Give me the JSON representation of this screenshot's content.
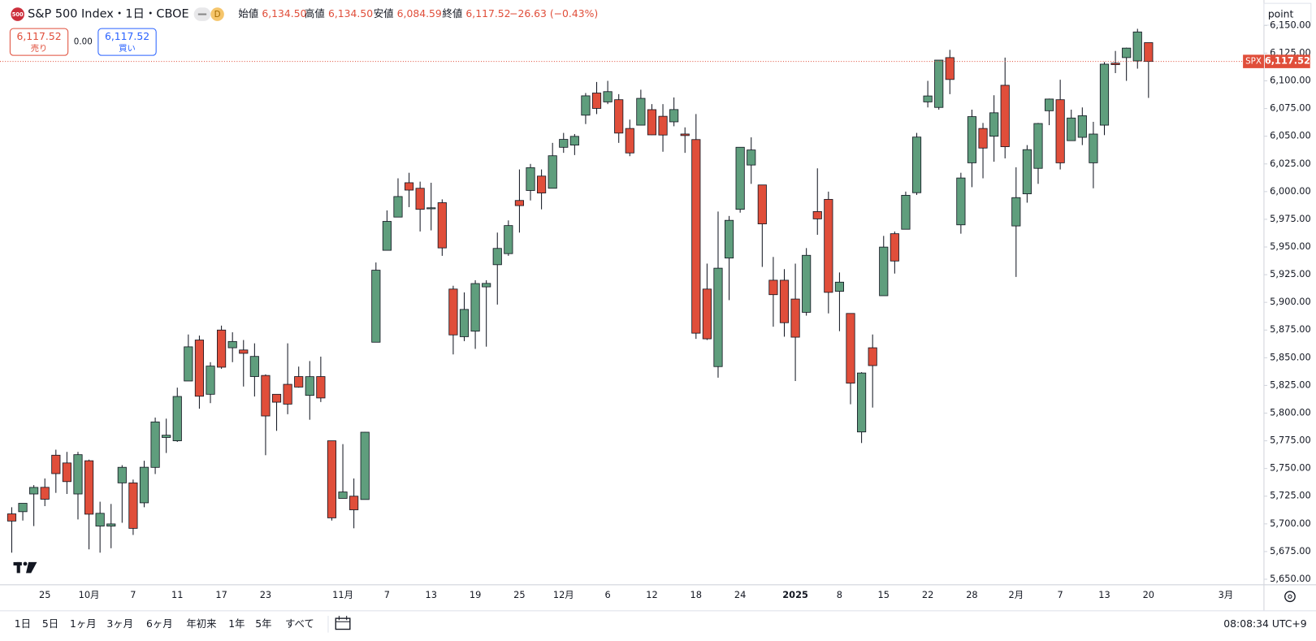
{
  "header": {
    "badge": "500",
    "title": "S&P 500 Index・1日・CBOE",
    "interval_badge": "D",
    "ohlc": [
      {
        "label": "始値",
        "value": "6,134.50"
      },
      {
        "label": "高値",
        "value": "6,134.50"
      },
      {
        "label": "安値",
        "value": "6,084.59"
      },
      {
        "label": "終値",
        "value": "6,117.52"
      }
    ],
    "change": "−26.63 (−0.43%)"
  },
  "trade": {
    "sell_price": "6,117.52",
    "sell_label": "売り",
    "spread": "0.00",
    "buy_price": "6,117.52",
    "buy_label": "買い"
  },
  "toolbar": {
    "ranges": [
      "1日",
      "5日",
      "1ヶ月",
      "3ヶ月",
      "6ヶ月",
      "年初来",
      "1年",
      "5年",
      "すべて"
    ],
    "clock": "08:08:34 UTC+9"
  },
  "chart_data": {
    "type": "candlestick",
    "unit_button": "point",
    "price_tag": {
      "symbol": "SPX",
      "label": "6,117.52"
    },
    "up_color": "#5f9e7d",
    "down_color": "#e04e3a",
    "grid": false,
    "ylim": [
      5645,
      6173
    ],
    "yticks": [
      {
        "value": 5650,
        "label": "5,650.00"
      },
      {
        "value": 5675,
        "label": "5,675.00"
      },
      {
        "value": 5700,
        "label": "5,700.00"
      },
      {
        "value": 5725,
        "label": "5,725.00"
      },
      {
        "value": 5750,
        "label": "5,750.00"
      },
      {
        "value": 5775,
        "label": "5,775.00"
      },
      {
        "value": 5800,
        "label": "5,800.00"
      },
      {
        "value": 5825,
        "label": "5,825.00"
      },
      {
        "value": 5850,
        "label": "5,850.00"
      },
      {
        "value": 5875,
        "label": "5,875.00"
      },
      {
        "value": 5900,
        "label": "5,900.00"
      },
      {
        "value": 5925,
        "label": "5,925.00"
      },
      {
        "value": 5950,
        "label": "5,950.00"
      },
      {
        "value": 5975,
        "label": "5,975.00"
      },
      {
        "value": 6000,
        "label": "6,000.00"
      },
      {
        "value": 6025,
        "label": "6,025.00"
      },
      {
        "value": 6050,
        "label": "6,050.00"
      },
      {
        "value": 6075,
        "label": "6,075.00"
      },
      {
        "value": 6100,
        "label": "6,100.00"
      },
      {
        "value": 6125,
        "label": "6,125.00"
      },
      {
        "value": 6150,
        "label": "6,150.00"
      }
    ],
    "categories": [
      null,
      null,
      null,
      "25",
      null,
      null,
      null,
      "10月",
      null,
      null,
      null,
      "7",
      null,
      null,
      null,
      "11",
      null,
      null,
      null,
      "17",
      null,
      null,
      null,
      "23",
      null,
      null,
      null,
      null,
      null,
      null,
      "11月",
      null,
      null,
      null,
      "7",
      null,
      null,
      null,
      "13",
      null,
      null,
      null,
      "19",
      null,
      null,
      null,
      "25",
      null,
      null,
      null,
      "12月",
      null,
      null,
      null,
      "6",
      null,
      null,
      null,
      "12",
      null,
      null,
      null,
      "18",
      null,
      null,
      null,
      "24",
      null,
      null,
      null,
      null,
      "2025",
      null,
      null,
      null,
      "8",
      null,
      null,
      null,
      "15",
      null,
      null,
      null,
      "22",
      null,
      null,
      null,
      "28",
      null,
      null,
      null,
      "2月",
      null,
      null,
      null,
      "7",
      null,
      null,
      null,
      "13",
      null,
      null,
      null,
      "20",
      null,
      null,
      null,
      null,
      null,
      null,
      "3月"
    ],
    "open": [
      5709,
      5711,
      5727,
      5733,
      5762,
      5755,
      5727,
      5757,
      5698,
      5698,
      5737,
      5737,
      5719,
      5751,
      5778,
      5775,
      5829,
      5866,
      5817,
      5875,
      5859,
      5857,
      5833,
      5834,
      5817,
      5826,
      5833,
      5816,
      5833,
      5775,
      5723,
      5725,
      5722,
      5864,
      5947,
      5977,
      6008,
      6003,
      5985,
      5990,
      5912,
      5869,
      5874,
      5914,
      5934,
      5944,
      5992,
      6001,
      6014,
      6003,
      6040,
      6042,
      6069,
      6089,
      6081,
      6083,
      6057,
      6060,
      6074,
      6068,
      6063,
      6052,
      6047,
      5912,
      5842,
      5940,
      5984,
      6024,
      6006,
      5920,
      5920,
      5903,
      5891,
      5982,
      5993,
      5910,
      5890,
      5783,
      5859,
      5906,
      5962,
      5966,
      5999,
      6081,
      6076,
      6121,
      5970,
      6026,
      6057,
      6050,
      6096,
      5969,
      5998,
      6021,
      6073,
      6083,
      6046,
      6049,
      6026,
      6060,
      6116,
      6121,
      6118,
      6134.5,
      null,
      null,
      null,
      null,
      null,
      null,
      null
    ],
    "high": [
      5715,
      5718,
      5735,
      5741,
      5767,
      5765,
      5765,
      5758,
      5720,
      5718,
      5753,
      5740,
      5757,
      5796,
      5795,
      5823,
      5871,
      5870,
      5846,
      5879,
      5873,
      5866,
      5863,
      5835,
      5817,
      5863,
      5842,
      5847,
      5851,
      5775,
      5772,
      5741,
      5783,
      5936,
      5983,
      6012,
      6017,
      6009,
      6008,
      5993,
      5915,
      5909,
      5920,
      5920,
      5963,
      5974,
      6020,
      6025,
      6020,
      6044,
      6053,
      6052,
      6089,
      6099,
      6100,
      6088,
      6065,
      6092,
      6079,
      6079,
      6085,
      6058,
      6070,
      5935,
      5982,
      5978,
      6040,
      6049,
      6006,
      5941,
      5930,
      5935,
      5949,
      6021,
      6000,
      5927,
      5890,
      5837,
      5871,
      5960,
      5964,
      6000,
      6053,
      6100,
      6118,
      6128,
      6017,
      6074,
      6062,
      6087,
      6121,
      6022,
      6042,
      6062,
      6084,
      6101,
      6074,
      6076,
      6063,
      6117,
      6127,
      6130,
      6147,
      6134.5,
      null,
      null,
      null,
      null,
      null,
      null,
      null
    ],
    "low": [
      5674,
      5703,
      5698,
      5716,
      5728,
      5727,
      5704,
      5677,
      5674,
      5678,
      5701,
      5690,
      5715,
      5745,
      5764,
      5774,
      5829,
      5804,
      5809,
      5840,
      5846,
      5824,
      5815,
      5762,
      5784,
      5799,
      5823,
      5794,
      5810,
      5703,
      5723,
      5696,
      5722,
      5864,
      5947,
      5977,
      5986,
      5964,
      5965,
      5942,
      5853,
      5865,
      5858,
      5860,
      5898,
      5942,
      5963,
      5992,
      5984,
      6003,
      6035,
      6033,
      6061,
      6070,
      6079,
      6044,
      6032,
      6060,
      6051,
      6036,
      6059,
      6035,
      5867,
      5866,
      5832,
      5902,
      5981,
      6007,
      5932,
      5878,
      5869,
      5829,
      5888,
      5961,
      5890,
      5874,
      5808,
      5773,
      5805,
      5906,
      5926,
      5966,
      5997,
      6076,
      6074,
      6088,
      5962,
      6004,
      6012,
      6027,
      6030,
      5923,
      5990,
      6007,
      6060,
      6020,
      6046,
      6042,
      6003,
      6051,
      6107,
      6100,
      6111,
      6084.59,
      null,
      null,
      null,
      null,
      null,
      null,
      null
    ],
    "close": [
      5702.55,
      5718.57,
      5732.93,
      5722.26,
      5745.37,
      5738.17,
      5762.48,
      5708.75,
      5709.54,
      5699.94,
      5751.07,
      5695.94,
      5751.13,
      5792.04,
      5780.05,
      5815.03,
      5859.85,
      5815.26,
      5842.47,
      5841.47,
      5864.67,
      5853.98,
      5851.2,
      5797.42,
      5809.86,
      5808.12,
      5823.52,
      5832.92,
      5813.67,
      5705.45,
      5728.8,
      5712.69,
      5782.76,
      5929.04,
      5973.1,
      5995.54,
      6001.35,
      5983.99,
      5985.38,
      5949.17,
      5870.62,
      5893.62,
      5916.98,
      5917.11,
      5948.71,
      5969.34,
      5987.37,
      6021.63,
      5998.74,
      6032.38,
      6047.15,
      6049.88,
      6086.49,
      6075.11,
      6090.27,
      6052.85,
      6034.91,
      6084.19,
      6051.25,
      6051.09,
      6074.08,
      6050.61,
      5872.16,
      5867.08,
      5930.85,
      5974.07,
      6040.04,
      6037.59,
      5970.84,
      5906.94,
      5881.63,
      5868.55,
      5942.47,
      5975.38,
      5909.03,
      5918.25,
      5827.04,
      5836.22,
      5842.91,
      5949.91,
      5937.34,
      5996.66,
      6049.24,
      6086.37,
      6118.71,
      6101.24,
      6012.28,
      6067.7,
      6039.31,
      6071.17,
      6040.53,
      5994.57,
      6037.88,
      6061.48,
      6083.57,
      6025.99,
      6066.44,
      6068.5,
      6051.97,
      6115.07,
      6114.63,
      6129.58,
      6144.15,
      6117.52,
      null,
      null,
      null,
      null,
      null,
      null,
      null
    ]
  }
}
